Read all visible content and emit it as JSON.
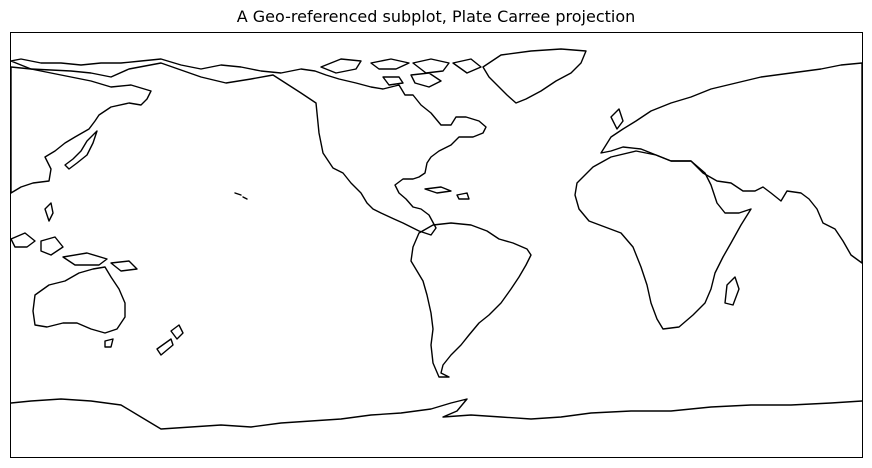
{
  "figure": {
    "title": "A Geo-referenced subplot, Plate Carree projection"
  },
  "map": {
    "projection": "Plate Carree",
    "central_longitude": -150,
    "extent": "global",
    "features": [
      "coastlines"
    ],
    "colors": {
      "coastline": "#000000",
      "background": "#ffffff",
      "frame": "#000000"
    }
  }
}
